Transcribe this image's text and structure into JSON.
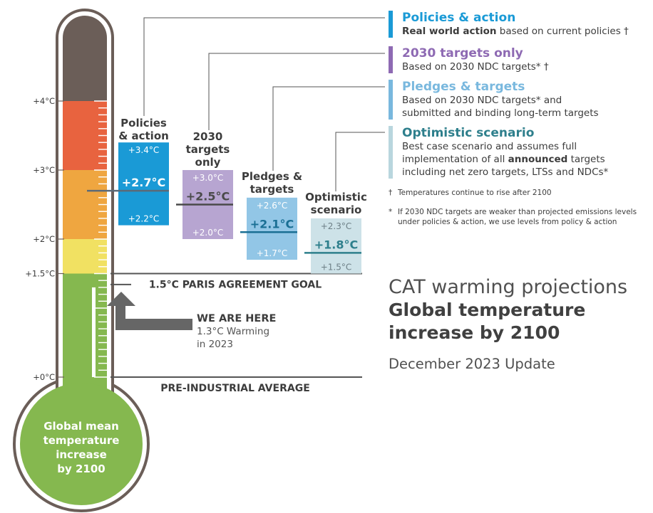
{
  "chart_data": {
    "type": "bar",
    "title": "CAT warming projections",
    "subtitle_line1": "Global temperature",
    "subtitle_line2": "increase by 2100",
    "update": "December 2023 Update",
    "y_unit": "°C",
    "ylim": [
      0,
      5.5
    ],
    "y_ticks": [
      {
        "value": 0,
        "label": "+0°C"
      },
      {
        "value": 1.5,
        "label": "+1.5°C"
      },
      {
        "value": 2,
        "label": "+2°C"
      },
      {
        "value": 3,
        "label": "+3°C"
      },
      {
        "value": 4,
        "label": "+4°C"
      }
    ],
    "thermometer_label": [
      "Global mean",
      "temperature",
      "increase",
      "by 2100"
    ],
    "zones": [
      {
        "from": 0,
        "to": 1.5,
        "color": "#85b84f"
      },
      {
        "from": 1.5,
        "to": 2.0,
        "color": "#f1e162"
      },
      {
        "from": 2.0,
        "to": 3.0,
        "color": "#efa640"
      },
      {
        "from": 3.0,
        "to": 4.0,
        "color": "#e8633f"
      },
      {
        "from": 4.0,
        "to": 5.5,
        "color": "#6b5e58"
      }
    ],
    "current_warming": {
      "value": 1.3,
      "label": "WE ARE HERE",
      "desc_line1": "1.3°C Warming",
      "desc_line2": "in 2023"
    },
    "reference_lines": [
      {
        "value": 1.5,
        "label": "1.5°C PARIS AGREEMENT GOAL"
      },
      {
        "value": 0,
        "label": "PRE-INDUSTRIAL AVERAGE"
      }
    ],
    "series": [
      {
        "name": "Policies & action",
        "label_lines": [
          "Policies",
          "& action"
        ],
        "low": 2.2,
        "central": 2.7,
        "high": 3.4,
        "low_label": "+2.2°C",
        "central_label": "+2.7°C",
        "high_label": "+3.4°C",
        "fill": "#1a9ad6",
        "text_color": "#ffffff",
        "central_color": "#ffffff",
        "line_color": "#5b6a78"
      },
      {
        "name": "2030 targets only",
        "label_lines": [
          "2030",
          "targets",
          "only"
        ],
        "low": 2.0,
        "central": 2.5,
        "high": 3.0,
        "low_label": "+2.0°C",
        "central_label": "+2.5°C",
        "high_label": "+3.0°C",
        "fill": "#b7a5d1",
        "text_color": "#ffffff",
        "central_color": "#4a4a4a",
        "line_color": "#4a4a4a"
      },
      {
        "name": "Pledges & targets",
        "label_lines": [
          "Pledges &",
          "targets"
        ],
        "low": 1.7,
        "central": 2.1,
        "high": 2.6,
        "low_label": "+1.7°C",
        "central_label": "+2.1°C",
        "high_label": "+2.6°C",
        "fill": "#92c6e6",
        "text_color": "#ffffff",
        "central_color": "#1a6f94",
        "line_color": "#1a6f94"
      },
      {
        "name": "Optimistic scenario",
        "label_lines": [
          "Optimistic",
          "scenario"
        ],
        "low": 1.5,
        "central": 1.8,
        "high": 2.3,
        "low_label": "+1.5°C",
        "central_label": "+1.8°C",
        "high_label": "+2.3°C",
        "fill": "#cde2e8",
        "text_color": "#6d7f86",
        "central_color": "#2e7f8c",
        "line_color": "#2e7f8c"
      }
    ]
  },
  "legend": [
    {
      "title": "Policies & action",
      "color": "#1a9ad6",
      "lines": [
        {
          "bold": "Real world action",
          "text": " based on current policies †"
        }
      ]
    },
    {
      "title": "2030 targets only",
      "color": "#8e6ab3",
      "lines": [
        {
          "bold": "",
          "text": "Based on 2030 NDC targets* †"
        }
      ]
    },
    {
      "title": "Pledges & targets",
      "color": "#79b8de",
      "lines": [
        {
          "bold": "",
          "text": "Based on 2030 NDC targets* and"
        },
        {
          "bold": "",
          "text": "submitted and binding long-term targets"
        }
      ]
    },
    {
      "title": "Optimistic scenario",
      "color": "#2e7f8c",
      "bar_color": "#b9d6de",
      "lines": [
        {
          "bold": "",
          "text": "Best case scenario and assumes full"
        },
        {
          "bold": "",
          "text": "implementation of all ",
          "bold_after": "announced",
          "text_after": " targets"
        },
        {
          "bold": "",
          "text": "including net zero targets, LTSs and NDCs*"
        }
      ]
    }
  ],
  "footnotes": [
    {
      "mark": "†",
      "lines": [
        "Temperatures continue to rise after 2100"
      ]
    },
    {
      "mark": "*",
      "lines": [
        "If 2030 NDC targets are weaker than projected emissions levels",
        "under policies & action, we use levels from policy & action"
      ]
    }
  ]
}
